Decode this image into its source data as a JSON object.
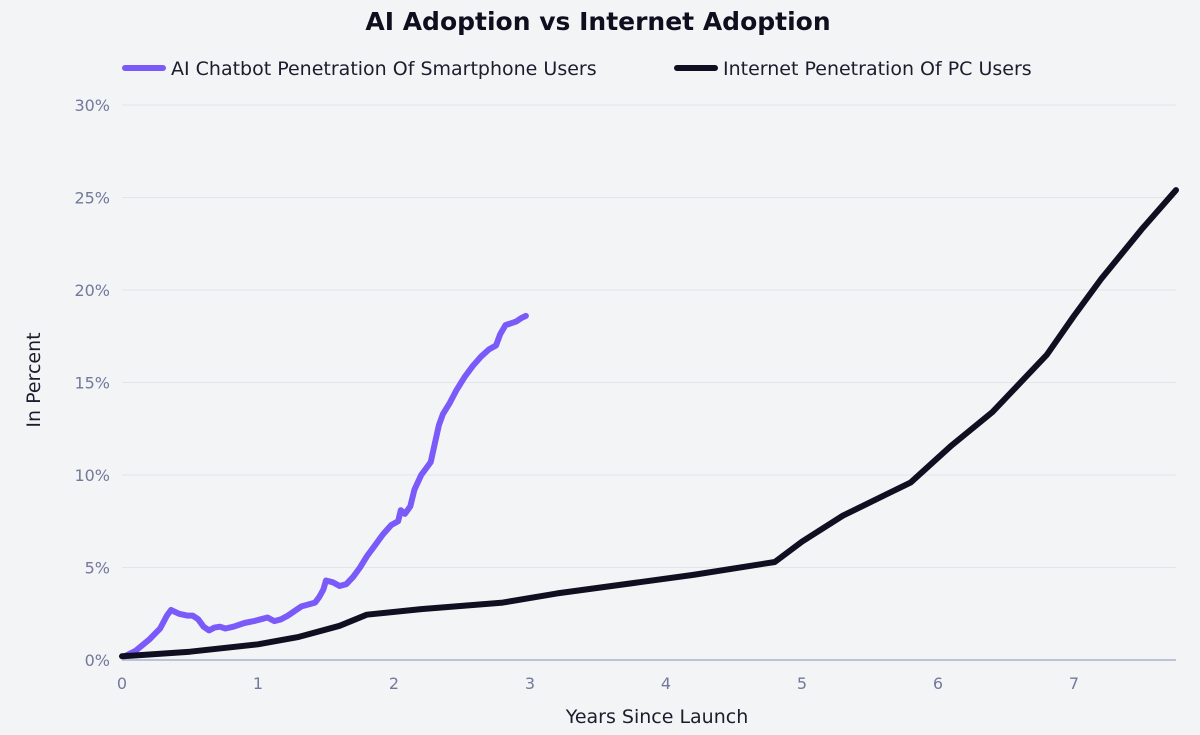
{
  "chart_data": {
    "type": "line",
    "title": "AI Adoption vs Internet Adoption",
    "xlabel": "Years Since Launch",
    "ylabel": "In Percent",
    "xlim": [
      0,
      7.75
    ],
    "ylim": [
      0,
      30
    ],
    "x_ticks": [
      0,
      1,
      2,
      3,
      4,
      5,
      6,
      7
    ],
    "x_tick_labels": [
      "0",
      "1",
      "2",
      "3",
      "4",
      "5",
      "6",
      "7"
    ],
    "y_ticks": [
      0,
      5,
      10,
      15,
      20,
      25,
      30
    ],
    "y_tick_labels": [
      "0%",
      "5%",
      "10%",
      "15%",
      "20%",
      "25%",
      "30%"
    ],
    "grid": "horizontal",
    "legend_position": "top-center",
    "series": [
      {
        "name": "AI Chatbot Penetration Of Smartphone Users",
        "color": "#7a5af8",
        "points": [
          [
            0.02,
            0.2
          ],
          [
            0.1,
            0.5
          ],
          [
            0.2,
            1.1
          ],
          [
            0.28,
            1.7
          ],
          [
            0.33,
            2.4
          ],
          [
            0.36,
            2.7
          ],
          [
            0.42,
            2.5
          ],
          [
            0.48,
            2.4
          ],
          [
            0.52,
            2.4
          ],
          [
            0.56,
            2.2
          ],
          [
            0.6,
            1.8
          ],
          [
            0.64,
            1.6
          ],
          [
            0.68,
            1.75
          ],
          [
            0.72,
            1.8
          ],
          [
            0.76,
            1.7
          ],
          [
            0.82,
            1.8
          ],
          [
            0.9,
            2.0
          ],
          [
            0.97,
            2.1
          ],
          [
            1.02,
            2.2
          ],
          [
            1.07,
            2.3
          ],
          [
            1.12,
            2.1
          ],
          [
            1.17,
            2.2
          ],
          [
            1.22,
            2.4
          ],
          [
            1.28,
            2.7
          ],
          [
            1.32,
            2.9
          ],
          [
            1.37,
            3.0
          ],
          [
            1.42,
            3.1
          ],
          [
            1.45,
            3.4
          ],
          [
            1.48,
            3.8
          ],
          [
            1.5,
            4.3
          ],
          [
            1.55,
            4.2
          ],
          [
            1.6,
            4.0
          ],
          [
            1.65,
            4.1
          ],
          [
            1.7,
            4.5
          ],
          [
            1.75,
            5.0
          ],
          [
            1.8,
            5.6
          ],
          [
            1.86,
            6.2
          ],
          [
            1.92,
            6.8
          ],
          [
            1.98,
            7.3
          ],
          [
            2.03,
            7.5
          ],
          [
            2.05,
            8.1
          ],
          [
            2.08,
            7.9
          ],
          [
            2.12,
            8.3
          ],
          [
            2.15,
            9.2
          ],
          [
            2.2,
            10.0
          ],
          [
            2.27,
            10.7
          ],
          [
            2.3,
            11.7
          ],
          [
            2.33,
            12.7
          ],
          [
            2.36,
            13.3
          ],
          [
            2.41,
            13.9
          ],
          [
            2.46,
            14.6
          ],
          [
            2.52,
            15.3
          ],
          [
            2.58,
            15.9
          ],
          [
            2.64,
            16.4
          ],
          [
            2.7,
            16.8
          ],
          [
            2.75,
            17.0
          ],
          [
            2.78,
            17.6
          ],
          [
            2.82,
            18.1
          ],
          [
            2.86,
            18.2
          ],
          [
            2.9,
            18.3
          ],
          [
            2.94,
            18.5
          ],
          [
            2.97,
            18.6
          ]
        ]
      },
      {
        "name": "Internet Penetration Of PC Users",
        "color": "#100f21",
        "points": [
          [
            0.0,
            0.2
          ],
          [
            0.5,
            0.45
          ],
          [
            1.0,
            0.85
          ],
          [
            1.3,
            1.25
          ],
          [
            1.6,
            1.85
          ],
          [
            1.8,
            2.45
          ],
          [
            2.2,
            2.75
          ],
          [
            2.8,
            3.1
          ],
          [
            3.2,
            3.6
          ],
          [
            3.8,
            4.2
          ],
          [
            4.2,
            4.6
          ],
          [
            4.8,
            5.3
          ],
          [
            5.0,
            6.4
          ],
          [
            5.3,
            7.8
          ],
          [
            5.8,
            9.6
          ],
          [
            6.1,
            11.6
          ],
          [
            6.4,
            13.4
          ],
          [
            6.8,
            16.5
          ],
          [
            7.0,
            18.6
          ],
          [
            7.2,
            20.6
          ],
          [
            7.5,
            23.3
          ],
          [
            7.75,
            25.4
          ]
        ]
      }
    ]
  }
}
